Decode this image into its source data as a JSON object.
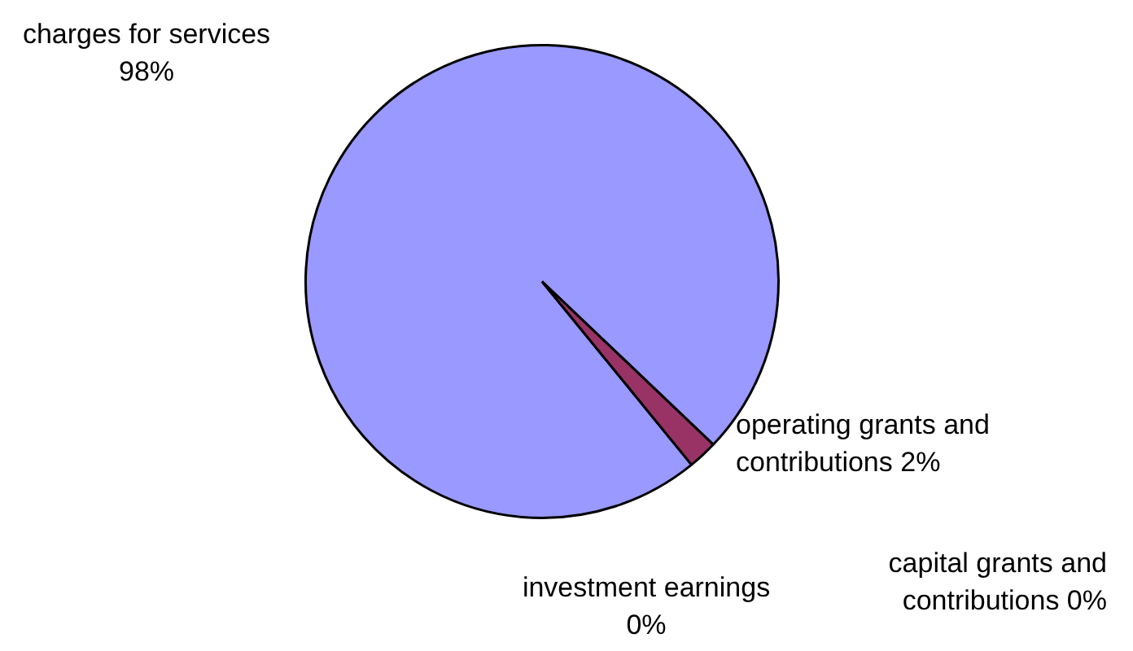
{
  "chart_data": {
    "type": "pie",
    "categories": [
      "charges for services",
      "operating grants and contributions",
      "capital grants and contributions",
      "investment earnings"
    ],
    "values": [
      98,
      2,
      0,
      0
    ],
    "value_labels": [
      "98%",
      "2%",
      "0%",
      "0%"
    ],
    "colors": [
      "#9999ff",
      "#993366",
      "#ffffcc",
      "#ccffff"
    ],
    "legend": false
  }
}
